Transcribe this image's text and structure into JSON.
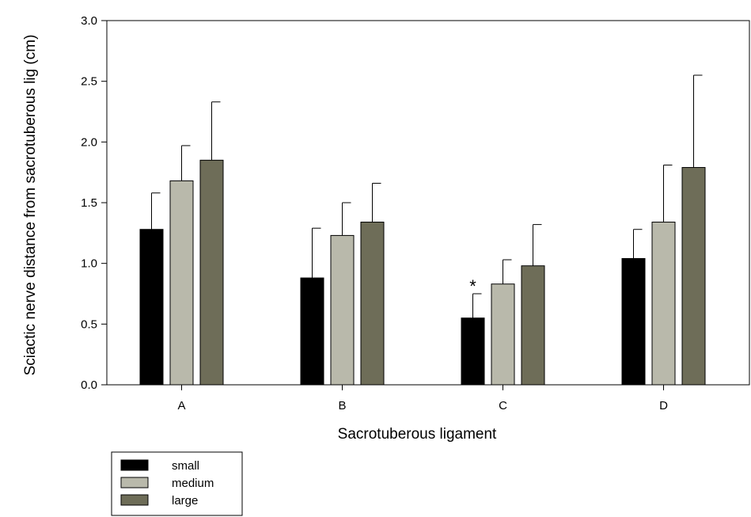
{
  "chart_data": {
    "type": "bar",
    "xlabel": "Sacrotuberous ligament",
    "ylabel": "Sciactic nerve distance from sacrotuberous lig (cm)",
    "categories": [
      "A",
      "B",
      "C",
      "D"
    ],
    "ylim": [
      0,
      3.0
    ],
    "yticks": [
      "0.0",
      "0.5",
      "1.0",
      "1.5",
      "2.0",
      "2.5",
      "3.0"
    ],
    "grid": false,
    "legend_position": "bottom-left",
    "series": [
      {
        "name": "small",
        "color": "#000000",
        "values": [
          1.28,
          0.88,
          0.55,
          1.04
        ],
        "errors": [
          0.3,
          0.41,
          0.2,
          0.24
        ]
      },
      {
        "name": "medium",
        "color": "#b9b9ab",
        "values": [
          1.68,
          1.23,
          0.83,
          1.34
        ],
        "errors": [
          0.29,
          0.27,
          0.2,
          0.47
        ]
      },
      {
        "name": "large",
        "color": "#6e6d58",
        "values": [
          1.85,
          1.34,
          0.98,
          1.79
        ],
        "errors": [
          0.48,
          0.32,
          0.34,
          0.76
        ]
      }
    ],
    "annotations": [
      {
        "text": "*",
        "category": "C",
        "series": "small"
      }
    ]
  }
}
